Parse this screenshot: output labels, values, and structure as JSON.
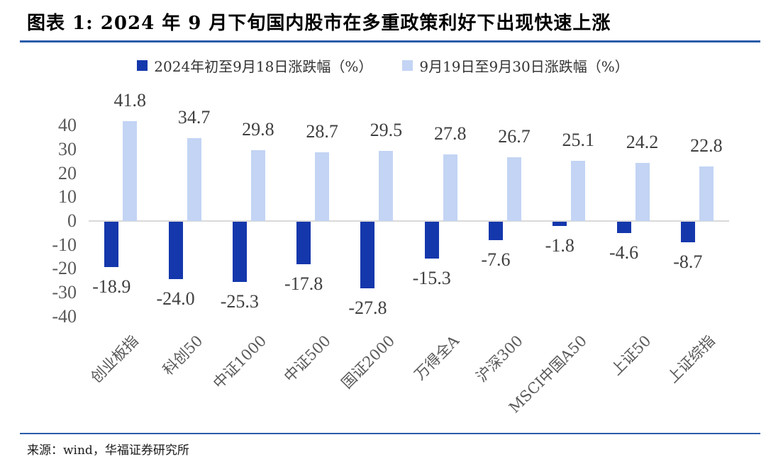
{
  "title": "图表 1: 2024 年 9 月下旬国内股市在多重政策利好下出现快速上涨",
  "source": "来源：wind，华福证券研究所",
  "colors": {
    "series1": "#1437AC",
    "series2": "#C3D4F4",
    "accent_rule": "#2B5CA9",
    "axis_line": "#D9D9D9",
    "tick_label": "#595959",
    "data_label": "#3F3F3F",
    "category_label": "#595959"
  },
  "chart_data": {
    "type": "bar",
    "categories": [
      "创业板指",
      "科创50",
      "中证1000",
      "中证500",
      "国证2000",
      "万得全A",
      "沪深300",
      "MSCI中国A50",
      "上证50",
      "上证综指"
    ],
    "series": [
      {
        "name": "2024年初至9月18日涨跌幅（%）",
        "color": "#1437AC",
        "values": [
          -18.9,
          -24.0,
          -25.3,
          -17.8,
          -27.8,
          -15.3,
          -7.6,
          -1.8,
          -4.6,
          -8.7
        ]
      },
      {
        "name": "9月19日至9月30日涨跌幅（%）",
        "color": "#C3D4F4",
        "values": [
          41.8,
          34.7,
          29.8,
          28.7,
          29.5,
          27.8,
          26.7,
          25.1,
          24.2,
          22.8
        ]
      }
    ],
    "yticks": [
      40,
      30,
      20,
      10,
      0,
      -10,
      -20,
      -30,
      -40
    ],
    "ylim": [
      -40,
      45
    ],
    "xlabel": "",
    "ylabel": "",
    "grid": false,
    "legend_position": "top",
    "value_labels": "one-decimal, outside end"
  }
}
